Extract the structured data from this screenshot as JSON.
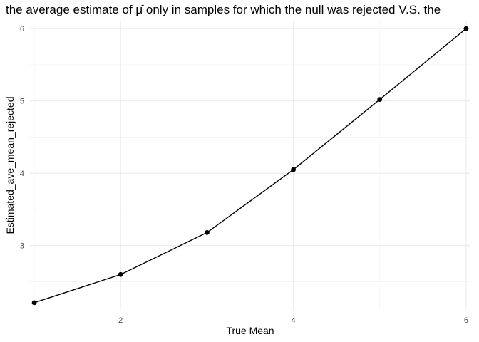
{
  "chart_data": {
    "type": "line",
    "title": "the average estimate of μ̂ only in samples for which the null was rejected V.S. the",
    "xlabel": "True Mean",
    "ylabel": "Estimated_ave_mean_rejected",
    "x": [
      1,
      2,
      3,
      4,
      5,
      6
    ],
    "series": [
      {
        "values": [
          2.21,
          2.6,
          3.18,
          4.05,
          5.02,
          6.0
        ]
      }
    ],
    "xlim": [
      0.95,
      6.05
    ],
    "ylim": [
      2.11,
      6.1
    ],
    "x_ticks": [
      2,
      4,
      6
    ],
    "y_ticks": [
      3,
      4,
      5,
      6
    ],
    "x_tick_labels": [
      "2",
      "4",
      "6"
    ],
    "y_tick_labels": [
      "3",
      "4",
      "5",
      "6"
    ],
    "grid": true,
    "line_color": "#000000",
    "point_color": "#000000",
    "grid_color": "#ebebeb",
    "background": "#ffffff"
  }
}
